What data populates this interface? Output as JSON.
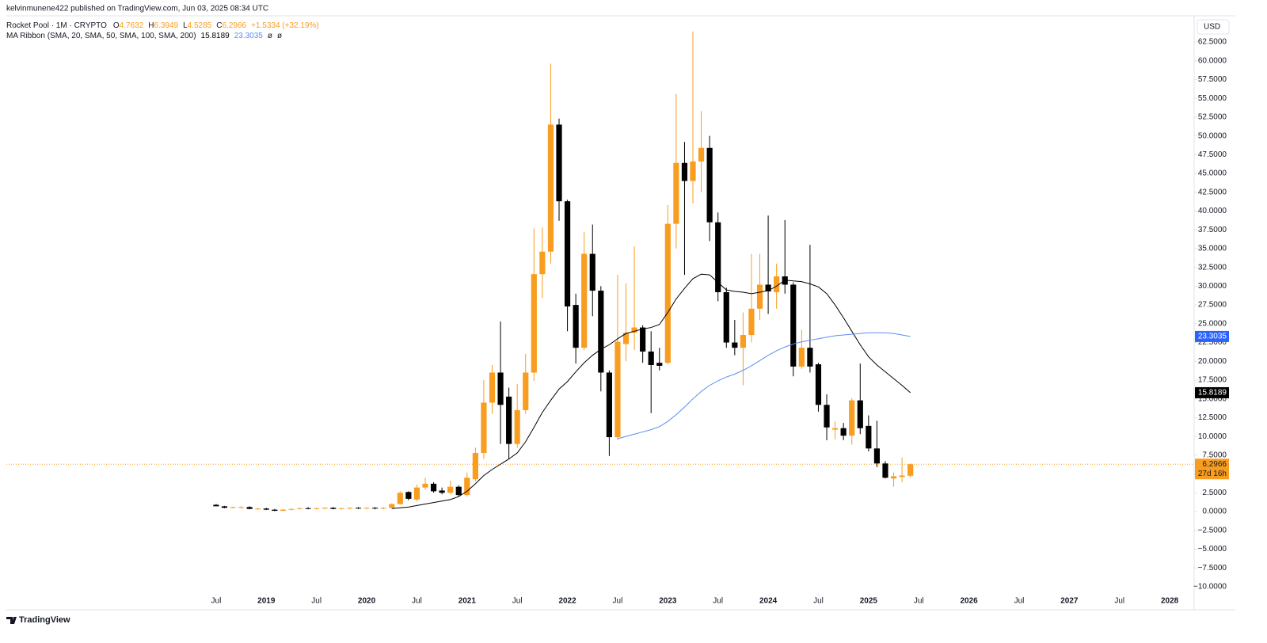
{
  "header": "kelvinmunene422 published on TradingView.com, Jun 03, 2025 08:34 UTC",
  "brand": "TradingView",
  "chart_data": {
    "type": "candlestick",
    "symbol": "Rocket Pool · 1M · CRYPTO",
    "ohlc_letters": [
      "O",
      "H",
      "L",
      "C"
    ],
    "change": "+1.5334 (+32.19%)",
    "indicator": "MA Ribbon (SMA, 20, SMA, 50, SMA, 100, SMA, 200)",
    "empty_ma_values": [
      "ø",
      "ø"
    ],
    "currency": "USD",
    "countdown": "27d 16h",
    "up_color": "#f89d1f",
    "down_color": "#000000",
    "x": [
      2018.5,
      2018.5833,
      2018.6667,
      2018.75,
      2018.8333,
      2018.9167,
      2019,
      2019.0833,
      2019.1667,
      2019.25,
      2019.3333,
      2019.4167,
      2019.5,
      2019.5833,
      2019.6667,
      2019.75,
      2019.8333,
      2019.9167,
      2020,
      2020.0833,
      2020.1667,
      2020.25,
      2020.3333,
      2020.4167,
      2020.5,
      2020.5833,
      2020.6667,
      2020.75,
      2020.8333,
      2020.9167,
      2021,
      2021.0833,
      2021.1667,
      2021.25,
      2021.3333,
      2021.4167,
      2021.5,
      2021.5833,
      2021.6667,
      2021.75,
      2021.8333,
      2021.9167,
      2022,
      2022.0833,
      2022.1667,
      2022.25,
      2022.3333,
      2022.4167,
      2022.5,
      2022.5833,
      2022.6667,
      2022.75,
      2022.8333,
      2022.9167,
      2023,
      2023.0833,
      2023.1667,
      2023.25,
      2023.3333,
      2023.4167,
      2023.5,
      2023.5833,
      2023.6667,
      2023.75,
      2023.8333,
      2023.9167,
      2024,
      2024.0833,
      2024.1667,
      2024.25,
      2024.3333,
      2024.4167,
      2024.5,
      2024.5833,
      2024.6667,
      2024.75,
      2024.8333,
      2024.9167,
      2025,
      2025.0833,
      2025.1667,
      2025.25,
      2025.3333,
      2025.4167
    ],
    "open": [
      0.9,
      0.7,
      0.5,
      0.5,
      0.6,
      0.35,
      0.4,
      0.25,
      0.1,
      0.25,
      0.35,
      0.45,
      0.35,
      0.45,
      0.5,
      0.35,
      0.45,
      0.5,
      0.4,
      0.5,
      0.4,
      0.5,
      1.0,
      2.6,
      1.6,
      3.2,
      3.7,
      2.8,
      2.5,
      3.3,
      2.2,
      4.3,
      7.8,
      14.5,
      18.5,
      15.3,
      9.0,
      13.5,
      18.5,
      31.6,
      34.6,
      51.5,
      41.3,
      27.5,
      21.8,
      34.3,
      29.4,
      18.5,
      9.9,
      22.3,
      23.8,
      24.5,
      21.3,
      19.8,
      19.8,
      38.3,
      46.4,
      44.0,
      46.6,
      48.4,
      38.5,
      29.2,
      22.5,
      21.8,
      23.5,
      27.0,
      30.2,
      29.2,
      31.3,
      30.2,
      19.3,
      21.8,
      19.6,
      14.2,
      10.9,
      11.1,
      10.1,
      14.8,
      11.4,
      8.4,
      6.4,
      4.4,
      4.6,
      4.7632
    ],
    "high": [
      1.0,
      0.75,
      0.65,
      0.7,
      0.7,
      0.5,
      0.5,
      0.35,
      0.3,
      0.4,
      0.5,
      0.6,
      0.5,
      0.55,
      0.6,
      0.5,
      0.55,
      0.6,
      0.55,
      0.6,
      0.6,
      1.1,
      2.7,
      2.7,
      3.6,
      4.5,
      3.9,
      3.2,
      4.1,
      3.5,
      5.2,
      8.5,
      17.5,
      19.5,
      25.3,
      16.5,
      17.0,
      21.0,
      37.7,
      37.8,
      59.6,
      52.3,
      41.5,
      29.0,
      37.2,
      38.2,
      30.0,
      18.8,
      31.5,
      30.4,
      35.3,
      24.8,
      24.0,
      21.8,
      40.8,
      55.6,
      49.2,
      63.9,
      53.3,
      50.0,
      39.8,
      29.8,
      25.5,
      26.5,
      34.3,
      34.3,
      39.4,
      33.0,
      38.8,
      30.5,
      24.2,
      35.5,
      19.8,
      15.6,
      12.0,
      11.8,
      15.1,
      19.7,
      12.8,
      12.1,
      6.7,
      5.2,
      7.2,
      6.3949
    ],
    "low": [
      0.7,
      0.45,
      0.4,
      0.4,
      0.3,
      0.25,
      0.2,
      0.05,
      0.05,
      0.15,
      0.25,
      0.3,
      0.25,
      0.3,
      0.3,
      0.25,
      0.3,
      0.35,
      0.3,
      0.3,
      0.3,
      0.4,
      0.9,
      1.5,
      1.4,
      2.9,
      2.5,
      2.3,
      2.3,
      2.0,
      2.0,
      4.0,
      7.0,
      13.0,
      9.0,
      7.0,
      8.5,
      13.0,
      17.4,
      28.4,
      33.0,
      38.7,
      24.0,
      19.7,
      21.5,
      26.0,
      16.0,
      7.4,
      9.5,
      20.0,
      21.5,
      19.8,
      13.1,
      18.8,
      19.6,
      35.0,
      31.5,
      41.0,
      42.5,
      36.0,
      28.0,
      21.8,
      20.8,
      16.8,
      22.5,
      25.5,
      26.3,
      27.0,
      29.0,
      18.0,
      19.0,
      18.5,
      13.3,
      9.5,
      9.6,
      9.5,
      8.9,
      10.3,
      8.0,
      5.9,
      4.4,
      3.3,
      3.9,
      4.5285
    ],
    "close": [
      0.7,
      0.5,
      0.6,
      0.6,
      0.35,
      0.4,
      0.25,
      0.1,
      0.25,
      0.35,
      0.45,
      0.35,
      0.45,
      0.5,
      0.35,
      0.45,
      0.5,
      0.4,
      0.5,
      0.4,
      0.5,
      1.0,
      2.5,
      1.7,
      3.2,
      3.7,
      2.7,
      2.5,
      3.3,
      2.2,
      4.5,
      7.8,
      14.5,
      18.5,
      14.2,
      9.0,
      13.5,
      18.5,
      31.6,
      34.6,
      51.5,
      41.3,
      27.3,
      21.8,
      34.3,
      29.4,
      18.5,
      9.9,
      22.6,
      23.8,
      24.5,
      21.3,
      19.5,
      19.4,
      38.3,
      46.4,
      44.0,
      46.6,
      48.4,
      38.5,
      29.2,
      22.5,
      21.8,
      23.5,
      27.0,
      30.2,
      29.3,
      31.3,
      30.2,
      19.3,
      21.8,
      19.3,
      14.2,
      11.2,
      11.1,
      10.1,
      14.8,
      11.1,
      8.4,
      6.4,
      4.5,
      4.7,
      4.8,
      6.2966
    ],
    "series": [
      {
        "color": "#000000",
        "values": [
          null,
          null,
          null,
          null,
          null,
          null,
          null,
          null,
          null,
          null,
          null,
          null,
          null,
          null,
          null,
          null,
          null,
          null,
          null,
          null,
          null,
          0.4,
          0.5,
          0.6,
          0.8,
          1.0,
          1.2,
          1.4,
          1.6,
          2.0,
          2.7,
          3.7,
          4.8,
          5.6,
          6.3,
          7.0,
          7.8,
          9.3,
          11.2,
          13.2,
          14.8,
          16.3,
          17.3,
          18.6,
          19.8,
          20.8,
          21.6,
          22.2,
          23.0,
          23.7,
          24.0,
          24.3,
          24.5,
          24.9,
          26.5,
          28.3,
          29.7,
          31.0,
          31.6,
          31.5,
          30.5,
          29.5,
          29.3,
          29.2,
          29.0,
          29.2,
          29.4,
          30.0,
          30.8,
          30.7,
          30.6,
          30.3,
          29.9,
          29.0,
          27.5,
          25.8,
          24.0,
          22.2,
          20.6,
          19.5,
          18.6,
          17.7,
          16.8,
          15.8189
        ]
      },
      {
        "color": "#5b8def",
        "values": [
          null,
          null,
          null,
          null,
          null,
          null,
          null,
          null,
          null,
          null,
          null,
          null,
          null,
          null,
          null,
          null,
          null,
          null,
          null,
          null,
          null,
          null,
          null,
          null,
          null,
          null,
          null,
          null,
          null,
          null,
          null,
          null,
          null,
          null,
          null,
          null,
          null,
          null,
          null,
          null,
          null,
          null,
          null,
          null,
          null,
          null,
          null,
          null,
          9.7,
          10.0,
          10.3,
          10.6,
          10.9,
          11.3,
          12.0,
          12.9,
          13.9,
          15.0,
          16.0,
          16.8,
          17.4,
          17.9,
          18.3,
          18.8,
          19.4,
          20.1,
          20.8,
          21.4,
          21.9,
          22.3,
          22.6,
          22.8,
          23.0,
          23.2,
          23.4,
          23.5,
          23.6,
          23.7,
          23.8,
          23.8,
          23.8,
          23.7,
          23.5,
          23.3035
        ],
        "label_color": "#2962ff"
      }
    ],
    "xlim": [
      2016.41,
      2028.22
    ],
    "ylim": [
      -10.96,
      65.98
    ],
    "xticks": [
      {
        "value": 2018.5,
        "label": "Jul"
      },
      2019,
      {
        "value": 2019.5,
        "label": "Jul"
      },
      2020,
      {
        "value": 2020.5,
        "label": "Jul"
      },
      2021,
      {
        "value": 2021.5,
        "label": "Jul"
      },
      2022,
      {
        "value": 2022.5,
        "label": "Jul"
      },
      2023,
      {
        "value": 2023.5,
        "label": "Jul"
      },
      2024,
      {
        "value": 2024.5,
        "label": "Jul"
      },
      2025,
      {
        "value": 2025.5,
        "label": "Jul"
      },
      2026,
      {
        "value": 2026.5,
        "label": "Jul"
      },
      2027,
      {
        "value": 2027.5,
        "label": "Jul"
      },
      2028
    ],
    "yticks": [
      {
        "value": -10,
        "label": "−10.0000"
      },
      {
        "value": -7.5,
        "label": "−7.5000"
      },
      {
        "value": -5,
        "label": "−5.0000"
      },
      {
        "value": -2.5,
        "label": "−2.5000"
      },
      {
        "value": 0,
        "label": "0.0000"
      },
      {
        "value": 2.5,
        "label": "2.5000"
      },
      {
        "value": 5,
        "label": "5.0000"
      },
      {
        "value": 7.5,
        "label": "7.5000"
      },
      {
        "value": 10,
        "label": "10.0000"
      },
      {
        "value": 12.5,
        "label": "12.5000"
      },
      {
        "value": 15,
        "label": "15.0000"
      },
      {
        "value": 17.5,
        "label": "17.5000"
      },
      {
        "value": 20,
        "label": "20.0000"
      },
      {
        "value": 22.5,
        "label": "22.5000"
      },
      {
        "value": 25,
        "label": "25.0000"
      },
      {
        "value": 27.5,
        "label": "27.5000"
      },
      {
        "value": 30,
        "label": "30.0000"
      },
      {
        "value": 32.5,
        "label": "32.5000"
      },
      {
        "value": 35,
        "label": "35.0000"
      },
      {
        "value": 37.5,
        "label": "37.5000"
      },
      {
        "value": 40,
        "label": "40.0000"
      },
      {
        "value": 42.5,
        "label": "42.5000"
      },
      {
        "value": 45,
        "label": "45.0000"
      },
      {
        "value": 47.5,
        "label": "47.5000"
      },
      {
        "value": 50,
        "label": "50.0000"
      },
      {
        "value": 52.5,
        "label": "52.5000"
      },
      {
        "value": 55,
        "label": "55.0000"
      },
      {
        "value": 57.5,
        "label": "57.5000"
      },
      {
        "value": 60,
        "label": "60.0000"
      },
      {
        "value": 62.5,
        "label": "62.5000"
      }
    ]
  }
}
